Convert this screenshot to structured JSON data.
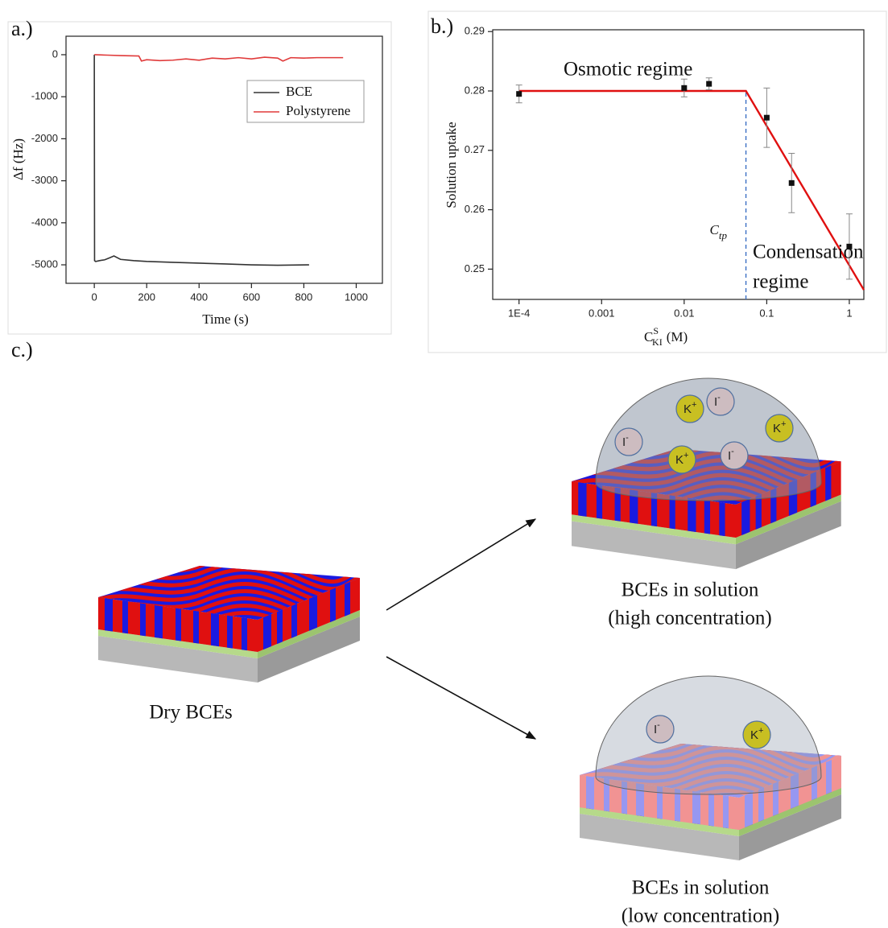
{
  "chart_data": [
    {
      "type": "line",
      "panel_label": "a.)",
      "x_label": "Time (s)",
      "y_label": "Δf (Hz)",
      "xlim": [
        -108,
        1100
      ],
      "ylim": [
        -5440,
        440
      ],
      "xticks": [
        0,
        200,
        400,
        600,
        800,
        1000
      ],
      "yticks": [
        0,
        -1000,
        -2000,
        -3000,
        -4000,
        -5000
      ],
      "legend": "upper right",
      "series": [
        {
          "name": "BCE",
          "color": "#333333",
          "x": [
            0,
            1,
            5,
            20,
            40,
            60,
            75,
            100,
            150,
            200,
            300,
            400,
            500,
            600,
            700,
            820
          ],
          "values": [
            0,
            -4900,
            -4920,
            -4900,
            -4880,
            -4830,
            -4790,
            -4870,
            -4900,
            -4920,
            -4940,
            -4960,
            -4980,
            -5000,
            -5010,
            -5000
          ]
        },
        {
          "name": "Polystyrene",
          "color": "#e03a3a",
          "x": [
            0,
            50,
            100,
            170,
            180,
            200,
            250,
            300,
            350,
            400,
            450,
            500,
            550,
            600,
            650,
            700,
            720,
            750,
            800,
            850,
            900,
            950
          ],
          "values": [
            0,
            -10,
            -20,
            -30,
            -150,
            -120,
            -140,
            -130,
            -100,
            -130,
            -80,
            -100,
            -70,
            -100,
            -60,
            -80,
            -150,
            -70,
            -80,
            -70,
            -70,
            -70
          ]
        }
      ]
    },
    {
      "type": "scatter",
      "panel_label": "b.)",
      "log_x": true,
      "x_label": {
        "base": "C",
        "sup": "S",
        "sub": "KI",
        "unit": "(M)"
      },
      "y_label": "Solution uptake",
      "xlim": [
        4.8e-05,
        1.5
      ],
      "ylim": [
        0.2449,
        0.2903
      ],
      "xticks": [
        {
          "value": 0.0001,
          "label": "1E-4"
        },
        0.001,
        0.01,
        0.1,
        1
      ],
      "yticks": [
        0.25,
        0.26,
        0.27,
        0.28,
        0.29
      ],
      "series": [
        {
          "color": "#111111",
          "x": [
            0.0001,
            0.01,
            0.02,
            0.1,
            0.2,
            1
          ],
          "values": [
            0.2795,
            0.2805,
            0.2812,
            0.2755,
            0.2645,
            0.2538
          ],
          "errors": [
            0.0015,
            0.0015,
            0.001,
            0.005,
            0.005,
            0.0055
          ]
        }
      ],
      "fit": {
        "color": "#e01010",
        "x": [
          0.0001,
          0.056,
          1.5
        ],
        "values": [
          0.28,
          0.28,
          0.2465
        ]
      },
      "transition": {
        "x": 0.056,
        "value": 0.28,
        "color": "#3a6fc4",
        "label": {
          "base": "C",
          "sub": "tp"
        }
      },
      "annotations": [
        "Osmotic regime",
        "Condensation",
        "regime"
      ]
    }
  ],
  "diagram": {
    "panel_label": "c.)",
    "dry_label": "Dry BCEs",
    "high": {
      "label": [
        "BCEs in solution",
        "(high concentration)"
      ],
      "ions": [
        {
          "symbol": "K",
          "charge": "+"
        },
        {
          "symbol": "I",
          "charge": "-"
        },
        {
          "symbol": "K",
          "charge": "+"
        },
        {
          "symbol": "I",
          "charge": "-"
        },
        {
          "symbol": "K",
          "charge": "+"
        },
        {
          "symbol": "I",
          "charge": "-"
        }
      ]
    },
    "low": {
      "label": [
        "BCEs in solution",
        "(low concentration)"
      ],
      "ions": [
        {
          "symbol": "I",
          "charge": "-"
        },
        {
          "symbol": "K",
          "charge": "+"
        }
      ]
    }
  }
}
